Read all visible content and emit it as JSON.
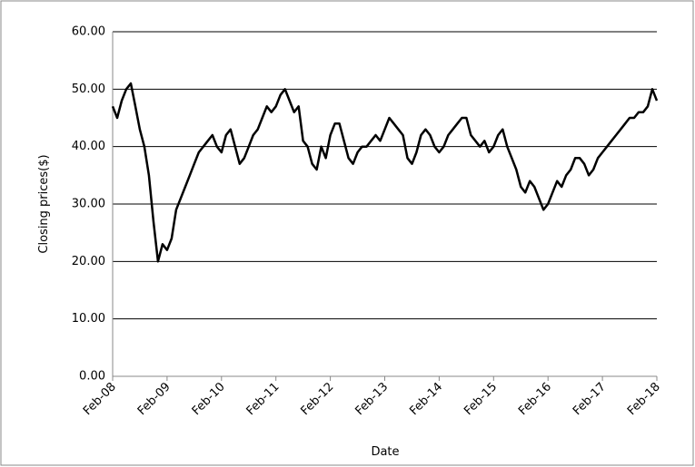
{
  "chart_data": {
    "type": "line",
    "y_label": "Closing prices($)",
    "x_label": "Date",
    "x": [
      0,
      1,
      2,
      3,
      4,
      5,
      6,
      7,
      8,
      9,
      10,
      11,
      12,
      13,
      14,
      15,
      16,
      17,
      18,
      19,
      20,
      21,
      22,
      23,
      24,
      25,
      26,
      27,
      28,
      29,
      30,
      31,
      32,
      33,
      34,
      35,
      36,
      37,
      38,
      39,
      40,
      41,
      42,
      43,
      44,
      45,
      46,
      47,
      48,
      49,
      50,
      51,
      52,
      53,
      54,
      55,
      56,
      57,
      58,
      59,
      60,
      61,
      62,
      63,
      64,
      65,
      66,
      67,
      68,
      69,
      70,
      71,
      72,
      73,
      74,
      75,
      76,
      77,
      78,
      79,
      80,
      81,
      82,
      83,
      84,
      85,
      86,
      87,
      88,
      89,
      90,
      91,
      92,
      93,
      94,
      95,
      96,
      97,
      98,
      99,
      100,
      101,
      102,
      103,
      104,
      105,
      106,
      107,
      108,
      109,
      110,
      111,
      112,
      113,
      114,
      115,
      116,
      117,
      118,
      119,
      120
    ],
    "values": [
      47,
      45,
      48,
      50,
      51,
      47,
      43,
      40,
      35,
      27,
      20,
      23,
      22,
      24,
      29,
      31,
      33,
      35,
      37,
      39,
      40,
      41,
      42,
      40,
      39,
      42,
      43,
      40,
      37,
      38,
      40,
      42,
      43,
      45,
      47,
      46,
      47,
      49,
      50,
      48,
      46,
      47,
      41,
      40,
      37,
      36,
      40,
      38,
      42,
      44,
      44,
      41,
      38,
      37,
      39,
      40,
      40,
      41,
      42,
      41,
      43,
      45,
      44,
      43,
      42,
      38,
      37,
      39,
      42,
      43,
      42,
      40,
      39,
      40,
      42,
      43,
      44,
      45,
      45,
      42,
      41,
      40,
      41,
      39,
      40,
      42,
      43,
      40,
      38,
      36,
      33,
      32,
      34,
      33,
      31,
      29,
      30,
      32,
      34,
      33,
      35,
      36,
      38,
      38,
      37,
      35,
      36,
      38,
      39,
      40,
      41,
      42,
      43,
      44,
      45,
      45,
      46,
      46,
      47,
      50,
      48
    ],
    "color": "#000000",
    "xlim": [
      0,
      120
    ],
    "xticks": [
      {
        "value": 0,
        "label": "Feb-08"
      },
      {
        "value": 12,
        "label": "Feb-09"
      },
      {
        "value": 24,
        "label": "Feb-10"
      },
      {
        "value": 36,
        "label": "Feb-11"
      },
      {
        "value": 48,
        "label": "Feb-12"
      },
      {
        "value": 60,
        "label": "Feb-13"
      },
      {
        "value": 72,
        "label": "Feb-14"
      },
      {
        "value": 84,
        "label": "Feb-15"
      },
      {
        "value": 96,
        "label": "Feb-16"
      },
      {
        "value": 108,
        "label": "Feb-17"
      },
      {
        "value": 120,
        "label": "Feb-18"
      }
    ],
    "ylim": [
      0,
      60
    ],
    "yticks": [
      {
        "value": 0,
        "label": "0.00"
      },
      {
        "value": 10,
        "label": "10.00"
      },
      {
        "value": 20,
        "label": "20.00"
      },
      {
        "value": 30,
        "label": "30.00"
      },
      {
        "value": 40,
        "label": "40.00"
      },
      {
        "value": 50,
        "label": "50.00"
      },
      {
        "value": 60,
        "label": "60.00"
      }
    ],
    "grid": true
  }
}
